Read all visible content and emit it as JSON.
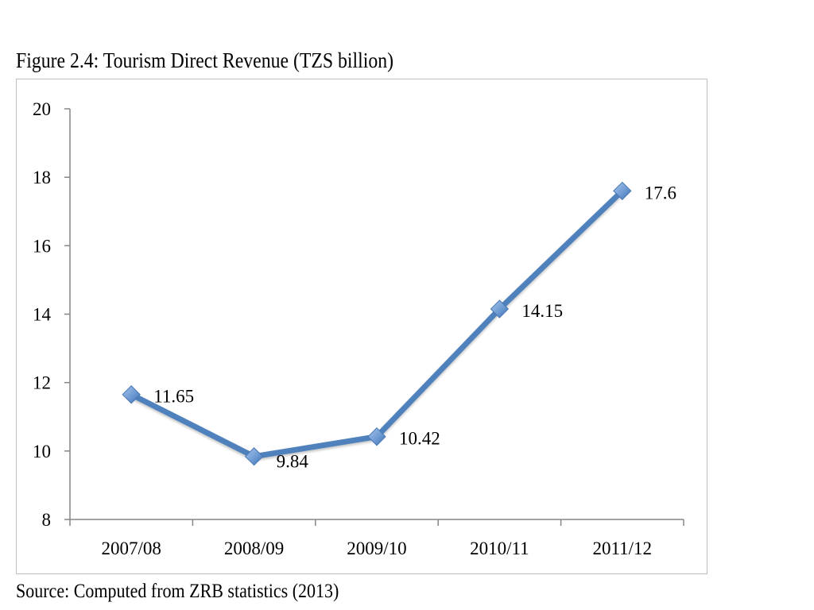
{
  "figure": {
    "title": "Figure 2.4: Tourism Direct Revenue (TZS billion)",
    "source": "Source: Computed from ZRB statistics (2013)"
  },
  "chart_data": {
    "type": "line",
    "title": "",
    "xlabel": "",
    "ylabel": "",
    "categories": [
      "2007/08",
      "2008/09",
      "2009/10",
      "2010/11",
      "2011/12"
    ],
    "series": [
      {
        "values": [
          11.65,
          9.84,
          10.42,
          14.15,
          17.6
        ],
        "data_labels": [
          "11.65",
          "9.84",
          "10.42",
          "14.15",
          "17.6"
        ],
        "color": "#4f81bd",
        "marker": "diamond"
      }
    ],
    "ylim": [
      8,
      20
    ],
    "yticks": [
      8,
      10,
      12,
      14,
      16,
      18,
      20
    ],
    "grid": false,
    "legend": "none"
  }
}
